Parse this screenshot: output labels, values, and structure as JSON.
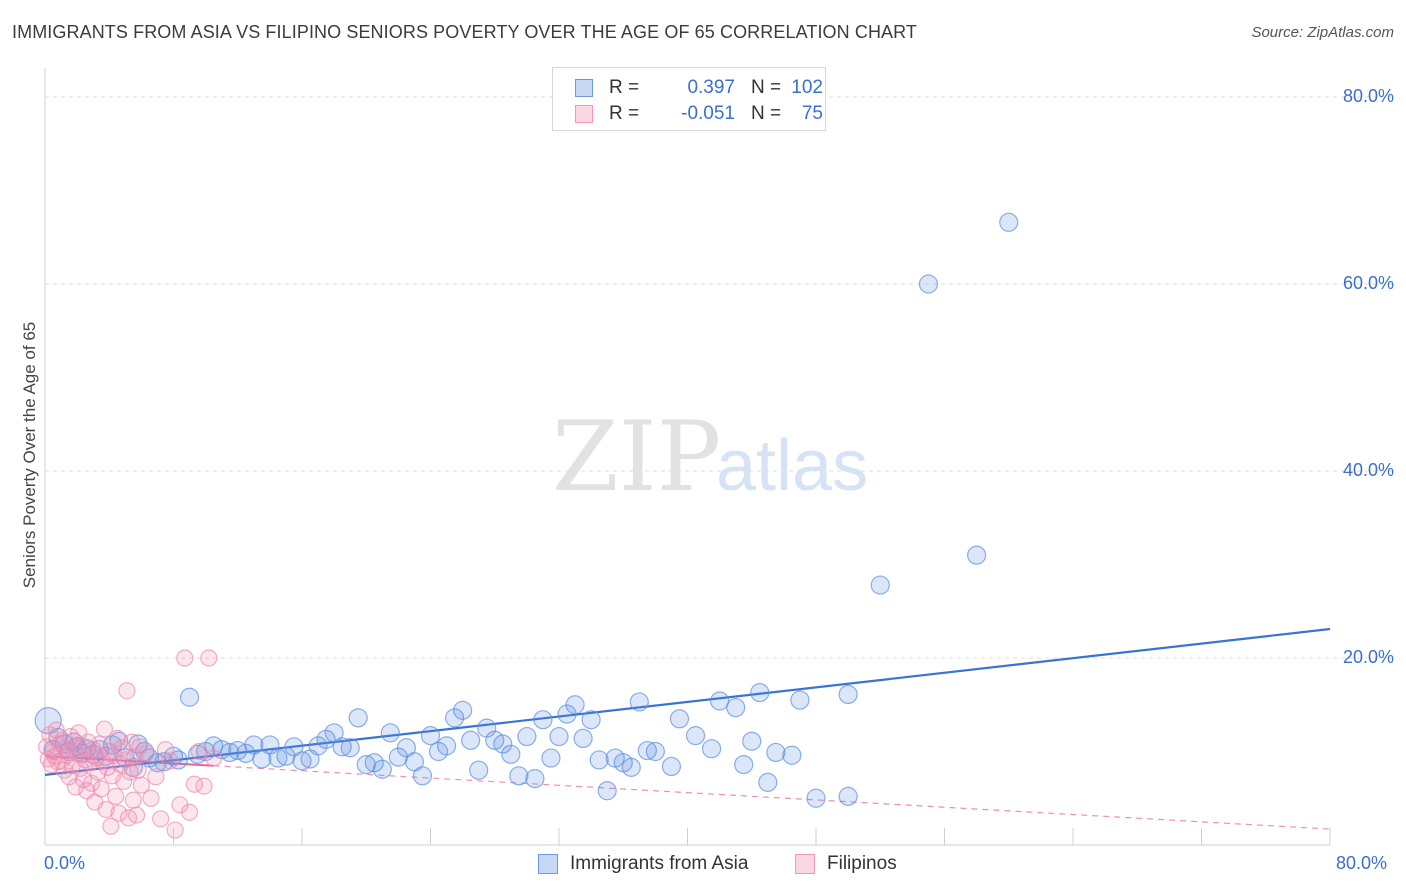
{
  "title": "IMMIGRANTS FROM ASIA VS FILIPINO SENIORS POVERTY OVER THE AGE OF 65 CORRELATION CHART",
  "source": "Source: ZipAtlas.com",
  "watermark": {
    "zip": "ZIP",
    "atlas": "atlas"
  },
  "legend": {
    "rows": [
      {
        "r_label": "R =",
        "r_value": "0.397",
        "n_label": "N =",
        "n_value": "102",
        "color": "#5b8fe0"
      },
      {
        "r_label": "R =",
        "r_value": "-0.051",
        "n_label": "N =",
        "n_value": "75",
        "color": "#f08cb0"
      }
    ]
  },
  "bottom_legend": [
    {
      "label": "Immigrants from Asia",
      "color": "#5b8fe0"
    },
    {
      "label": "Filipinos",
      "color": "#f08cb0"
    }
  ],
  "chart_data": {
    "type": "scatter",
    "title": "IMMIGRANTS FROM ASIA VS FILIPINO SENIORS POVERTY OVER THE AGE OF 65 CORRELATION CHART",
    "xlabel": "",
    "ylabel": "Seniors Poverty Over the Age of 65",
    "xlim": [
      0,
      80
    ],
    "ylim": [
      0,
      80
    ],
    "x_tick_labels": [
      "0.0%",
      "80.0%"
    ],
    "y_tick_labels": [
      "20.0%",
      "40.0%",
      "60.0%",
      "80.0%"
    ],
    "y_ticks": [
      20,
      40,
      60,
      80
    ],
    "grid": true,
    "legend_position": "top-center",
    "series": [
      {
        "name": "Immigrants from Asia",
        "color": "#5b8fe0",
        "trend": {
          "x": [
            0,
            80
          ],
          "y": [
            7.5,
            23.1
          ]
        },
        "points": [
          [
            0.2,
            13.3
          ],
          [
            0.5,
            10.2
          ],
          [
            0.8,
            11.5
          ],
          [
            1.2,
            10.8
          ],
          [
            1.5,
            10.0
          ],
          [
            1.8,
            11.0
          ],
          [
            2.0,
            10.5
          ],
          [
            2.3,
            9.8
          ],
          [
            2.6,
            10.3
          ],
          [
            3.0,
            9.7
          ],
          [
            3.4,
            10.2
          ],
          [
            3.8,
            9.5
          ],
          [
            4.2,
            10.7
          ],
          [
            4.6,
            11.1
          ],
          [
            5.0,
            9.3
          ],
          [
            5.5,
            8.3
          ],
          [
            5.8,
            10.8
          ],
          [
            6.2,
            10.0
          ],
          [
            6.5,
            9.3
          ],
          [
            7.0,
            8.8
          ],
          [
            7.4,
            8.9
          ],
          [
            8.0,
            9.5
          ],
          [
            8.3,
            9.1
          ],
          [
            9.0,
            15.8
          ],
          [
            9.5,
            9.7
          ],
          [
            10.0,
            10.0
          ],
          [
            10.5,
            10.6
          ],
          [
            11.0,
            10.2
          ],
          [
            11.5,
            9.9
          ],
          [
            12.0,
            10.1
          ],
          [
            12.5,
            9.8
          ],
          [
            13.0,
            10.7
          ],
          [
            13.5,
            9.2
          ],
          [
            14.0,
            10.7
          ],
          [
            14.5,
            9.3
          ],
          [
            15.0,
            9.5
          ],
          [
            15.5,
            10.5
          ],
          [
            16.0,
            9.0
          ],
          [
            16.5,
            9.2
          ],
          [
            17.0,
            10.6
          ],
          [
            17.5,
            11.3
          ],
          [
            18.0,
            12.0
          ],
          [
            18.5,
            10.5
          ],
          [
            19.0,
            10.4
          ],
          [
            19.5,
            13.6
          ],
          [
            20.0,
            8.6
          ],
          [
            20.5,
            8.8
          ],
          [
            21.0,
            8.1
          ],
          [
            21.5,
            12.0
          ],
          [
            22.0,
            9.4
          ],
          [
            22.5,
            10.4
          ],
          [
            23.0,
            8.9
          ],
          [
            23.5,
            7.4
          ],
          [
            24.0,
            11.7
          ],
          [
            24.5,
            10.0
          ],
          [
            25.0,
            10.6
          ],
          [
            25.5,
            13.6
          ],
          [
            26.0,
            14.4
          ],
          [
            26.5,
            11.2
          ],
          [
            27.0,
            8.0
          ],
          [
            27.5,
            12.5
          ],
          [
            28.0,
            11.2
          ],
          [
            28.5,
            10.8
          ],
          [
            29.0,
            9.7
          ],
          [
            29.5,
            7.4
          ],
          [
            30.0,
            11.6
          ],
          [
            30.5,
            7.1
          ],
          [
            31.0,
            13.4
          ],
          [
            31.5,
            9.3
          ],
          [
            32.0,
            11.6
          ],
          [
            32.5,
            14.0
          ],
          [
            33.0,
            15.0
          ],
          [
            33.5,
            11.4
          ],
          [
            34.0,
            13.4
          ],
          [
            34.5,
            9.1
          ],
          [
            35.0,
            5.8
          ],
          [
            35.5,
            9.3
          ],
          [
            36.0,
            8.8
          ],
          [
            36.5,
            8.3
          ],
          [
            37.0,
            15.3
          ],
          [
            37.5,
            10.1
          ],
          [
            38.0,
            10.0
          ],
          [
            39.0,
            8.4
          ],
          [
            39.5,
            13.5
          ],
          [
            40.5,
            11.7
          ],
          [
            41.5,
            10.3
          ],
          [
            42.0,
            15.4
          ],
          [
            43.0,
            14.7
          ],
          [
            43.5,
            8.6
          ],
          [
            44.0,
            11.1
          ],
          [
            44.5,
            16.3
          ],
          [
            45.0,
            6.7
          ],
          [
            45.5,
            9.9
          ],
          [
            46.5,
            9.6
          ],
          [
            47.0,
            15.5
          ],
          [
            48.0,
            5.0
          ],
          [
            50.0,
            16.1
          ],
          [
            50.0,
            5.2
          ],
          [
            52.0,
            27.8
          ],
          [
            55.0,
            60.0
          ],
          [
            58.0,
            31.0
          ],
          [
            60.0,
            66.6
          ]
        ]
      },
      {
        "name": "Filipinos",
        "color": "#f08cb0",
        "trend": {
          "x": [
            0,
            80
          ],
          "y": [
            9.5,
            1.7
          ]
        },
        "points": [
          [
            0.1,
            10.5
          ],
          [
            0.2,
            9.2
          ],
          [
            0.3,
            11.8
          ],
          [
            0.4,
            8.6
          ],
          [
            0.5,
            10.0
          ],
          [
            0.6,
            9.5
          ],
          [
            0.7,
            12.3
          ],
          [
            0.8,
            8.9
          ],
          [
            0.9,
            10.8
          ],
          [
            1.0,
            9.0
          ],
          [
            1.1,
            11.2
          ],
          [
            1.2,
            8.0
          ],
          [
            1.3,
            10.3
          ],
          [
            1.4,
            9.6
          ],
          [
            1.5,
            7.3
          ],
          [
            1.6,
            11.6
          ],
          [
            1.7,
            8.5
          ],
          [
            1.8,
            10.1
          ],
          [
            1.9,
            6.2
          ],
          [
            2.0,
            9.8
          ],
          [
            2.1,
            12.0
          ],
          [
            2.2,
            8.2
          ],
          [
            2.3,
            10.6
          ],
          [
            2.4,
            7.0
          ],
          [
            2.5,
            9.1
          ],
          [
            2.6,
            5.8
          ],
          [
            2.7,
            11.0
          ],
          [
            2.8,
            8.8
          ],
          [
            2.9,
            6.6
          ],
          [
            3.0,
            10.2
          ],
          [
            3.1,
            4.6
          ],
          [
            3.2,
            9.3
          ],
          [
            3.3,
            7.8
          ],
          [
            3.4,
            10.8
          ],
          [
            3.5,
            6.0
          ],
          [
            3.6,
            9.0
          ],
          [
            3.7,
            12.4
          ],
          [
            3.8,
            3.8
          ],
          [
            3.9,
            8.3
          ],
          [
            4.0,
            10.0
          ],
          [
            4.1,
            2.0
          ],
          [
            4.2,
            7.4
          ],
          [
            4.3,
            9.6
          ],
          [
            4.4,
            5.2
          ],
          [
            4.5,
            11.4
          ],
          [
            4.6,
            3.4
          ],
          [
            4.7,
            8.6
          ],
          [
            4.8,
            10.4
          ],
          [
            4.9,
            6.8
          ],
          [
            5.0,
            9.1
          ],
          [
            5.1,
            16.5
          ],
          [
            5.2,
            2.9
          ],
          [
            5.3,
            7.8
          ],
          [
            5.4,
            11.0
          ],
          [
            5.5,
            4.8
          ],
          [
            5.6,
            9.4
          ],
          [
            5.7,
            3.2
          ],
          [
            5.8,
            8.0
          ],
          [
            5.9,
            10.5
          ],
          [
            6.0,
            6.4
          ],
          [
            6.3,
            9.8
          ],
          [
            6.6,
            5.0
          ],
          [
            6.9,
            7.3
          ],
          [
            7.2,
            2.8
          ],
          [
            7.5,
            10.2
          ],
          [
            7.8,
            9.0
          ],
          [
            8.1,
            1.6
          ],
          [
            8.4,
            4.3
          ],
          [
            8.7,
            20.0
          ],
          [
            9.0,
            3.5
          ],
          [
            9.3,
            6.5
          ],
          [
            9.6,
            10.0
          ],
          [
            9.9,
            6.3
          ],
          [
            10.2,
            20.0
          ],
          [
            10.5,
            9.3
          ]
        ]
      }
    ]
  }
}
